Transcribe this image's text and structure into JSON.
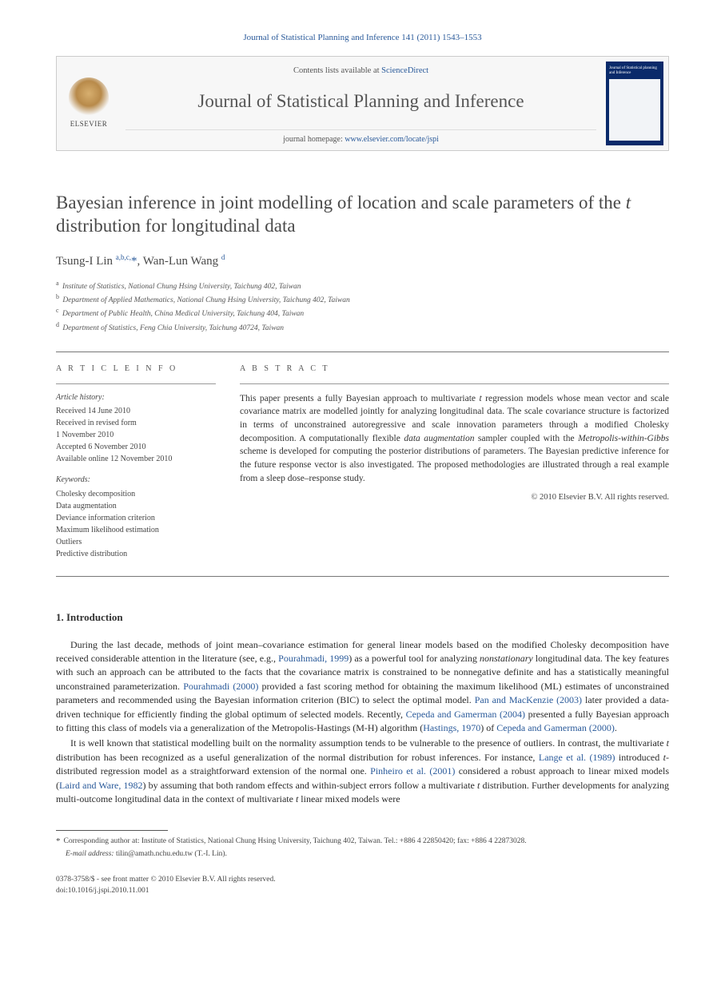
{
  "journal_ref": "Journal of Statistical Planning and Inference 141 (2011) 1543–1553",
  "header": {
    "contents_prefix": "Contents lists available at ",
    "contents_link": "ScienceDirect",
    "journal_title": "Journal of Statistical Planning and Inference",
    "homepage_prefix": "journal homepage: ",
    "homepage_url": "www.elsevier.com/locate/jspi",
    "publisher": "ELSEVIER",
    "cover_text": "Journal of Statistical planning and Inference"
  },
  "title": "Bayesian inference in joint modelling of location and scale parameters of the t distribution for longitudinal data",
  "authors_html": "Tsung-I Lin <sup><a>a</a>,<a>b</a>,<a>c</a>,</sup><a>*</a>, Wan-Lun Wang <sup><a>d</a></sup>",
  "affiliations": [
    {
      "sup": "a",
      "text": "Institute of Statistics, National Chung Hsing University, Taichung 402, Taiwan"
    },
    {
      "sup": "b",
      "text": "Department of Applied Mathematics, National Chung Hsing University, Taichung 402, Taiwan"
    },
    {
      "sup": "c",
      "text": "Department of Public Health, China Medical University, Taichung 404, Taiwan"
    },
    {
      "sup": "d",
      "text": "Department of Statistics, Feng Chia University, Taichung 40724, Taiwan"
    }
  ],
  "article_info": {
    "heading": "A R T I C L E   I N F O",
    "history_label": "Article history:",
    "history": [
      "Received 14 June 2010",
      "Received in revised form",
      "1 November 2010",
      "Accepted 6 November 2010",
      "Available online 12 November 2010"
    ],
    "keywords_label": "Keywords:",
    "keywords": [
      "Cholesky decomposition",
      "Data augmentation",
      "Deviance information criterion",
      "Maximum likelihood estimation",
      "Outliers",
      "Predictive distribution"
    ]
  },
  "abstract": {
    "heading": "A B S T R A C T",
    "text": "This paper presents a fully Bayesian approach to multivariate t regression models whose mean vector and scale covariance matrix are modelled jointly for analyzing longitudinal data. The scale covariance structure is factorized in terms of unconstrained autoregressive and scale innovation parameters through a modified Cholesky decomposition. A computationally flexible data augmentation sampler coupled with the Metropolis-within-Gibbs scheme is developed for computing the posterior distributions of parameters. The Bayesian predictive inference for the future response vector is also investigated. The proposed methodologies are illustrated through a real example from a sleep dose–response study.",
    "copyright": "© 2010 Elsevier B.V. All rights reserved."
  },
  "section1": {
    "heading": "1. Introduction",
    "para1": "During the last decade, methods of joint mean–covariance estimation for general linear models based on the modified Cholesky decomposition have received considerable attention in the literature (see, e.g., <a>Pourahmadi, 1999</a>) as a powerful tool for analyzing nonstationary longitudinal data. The key features with such an approach can be attributed to the facts that the covariance matrix is constrained to be nonnegative definite and has a statistically meaningful unconstrained parameterization. <a>Pourahmadi (2000)</a> provided a fast scoring method for obtaining the maximum likelihood (ML) estimates of unconstrained parameters and recommended using the Bayesian information criterion (BIC) to select the optimal model. <a>Pan and MacKenzie (2003)</a> later provided a data-driven technique for efficiently finding the global optimum of selected models. Recently, <a>Cepeda and Gamerman (2004)</a> presented a fully Bayesian approach to fitting this class of models via a generalization of the Metropolis-Hastings (M-H) algorithm (<a>Hastings, 1970</a>) of <a>Cepeda and Gamerman (2000)</a>.",
    "para2": "It is well known that statistical modelling built on the normality assumption tends to be vulnerable to the presence of outliers. In contrast, the multivariate t distribution has been recognized as a useful generalization of the normal distribution for robust inferences. For instance, <a>Lange et al. (1989)</a> introduced t-distributed regression model as a straightforward extension of the normal one. <a>Pinheiro et al. (2001)</a> considered a robust approach to linear mixed models (<a>Laird and Ware, 1982</a>) by assuming that both random effects and within-subject errors follow a multivariate t distribution. Further developments for analyzing multi-outcome longitudinal data in the context of multivariate t linear mixed models were"
  },
  "footnote": {
    "corr": "Corresponding author at: Institute of Statistics, National Chung Hsing University, Taichung 402, Taiwan. Tel.: +886 4 22850420; fax: +886 4 22873028.",
    "email_label": "E-mail address:",
    "email": "tilin@amath.nchu.edu.tw (T.-I. Lin)."
  },
  "footer": {
    "line1": "0378-3758/$ - see front matter © 2010 Elsevier B.V. All rights reserved.",
    "line2": "doi:10.1016/j.jspi.2010.11.001"
  },
  "colors": {
    "link": "#2a5a9a",
    "text": "#2a2a2a",
    "muted": "#555",
    "rule": "#777",
    "cover_bg": "#0a2a6a"
  }
}
